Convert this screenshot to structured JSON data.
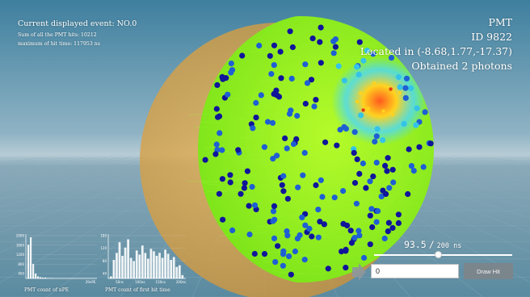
{
  "event": {
    "title": "Current displayed event: NO.0",
    "sum_hits": "Sum of all the PMT hits: 10212",
    "max_hit_time": "maximum of hit time: 117953 ns"
  },
  "pmt": {
    "title": "PMT",
    "id": "ID 9822",
    "location": "Located in (-8.68,1.77,-17.37)",
    "photons": "Obtained 2 photons"
  },
  "time": {
    "current": "93.5",
    "separator": "/",
    "max": "200 ns",
    "fraction": 0.47
  },
  "controls": {
    "hit_input_value": "0",
    "draw_hit_label": "Draw Hit"
  },
  "hist_npe": {
    "label": "PMT count of nPE",
    "y_ticks": [
      "2000",
      "1600",
      "1200",
      "800",
      "400"
    ],
    "x_tick": "29nPE",
    "bars": [
      0.82,
      1.0,
      0.35,
      0.12,
      0.05,
      0.03,
      0.02,
      0.02,
      0.01,
      0.01,
      0.01,
      0,
      0,
      0,
      0,
      0,
      0,
      0,
      0,
      0,
      0,
      0,
      0,
      0,
      0,
      0,
      0,
      0
    ]
  },
  "hist_time": {
    "label": "PMT count of first hit time",
    "y_ticks": [
      "180",
      "120",
      "80",
      "40"
    ],
    "x_ticks": [
      "50ns",
      "100ns",
      "150ns",
      "200ns"
    ],
    "bars": [
      0.05,
      0.45,
      0.62,
      0.88,
      0.55,
      0.75,
      0.95,
      0.5,
      0.42,
      0.68,
      0.58,
      0.8,
      0.62,
      0.48,
      0.72,
      0.66,
      0.55,
      0.62,
      0.5,
      0.7,
      0.6,
      0.45,
      0.52,
      0.28,
      0.32,
      0.08
    ]
  },
  "colors": {
    "sky_top": "#4f8aa6",
    "sky_horizon": "#a9c3cf",
    "floor": "#5f8fa5",
    "sphere_translucent": "#d9a040",
    "sphere_hits": "#8ff21e",
    "pmt_dark": "#10159a",
    "pmt_mid": "#1e5fd4",
    "pmt_light": "#35c3e8",
    "pmt_hot": "#e63a14"
  }
}
